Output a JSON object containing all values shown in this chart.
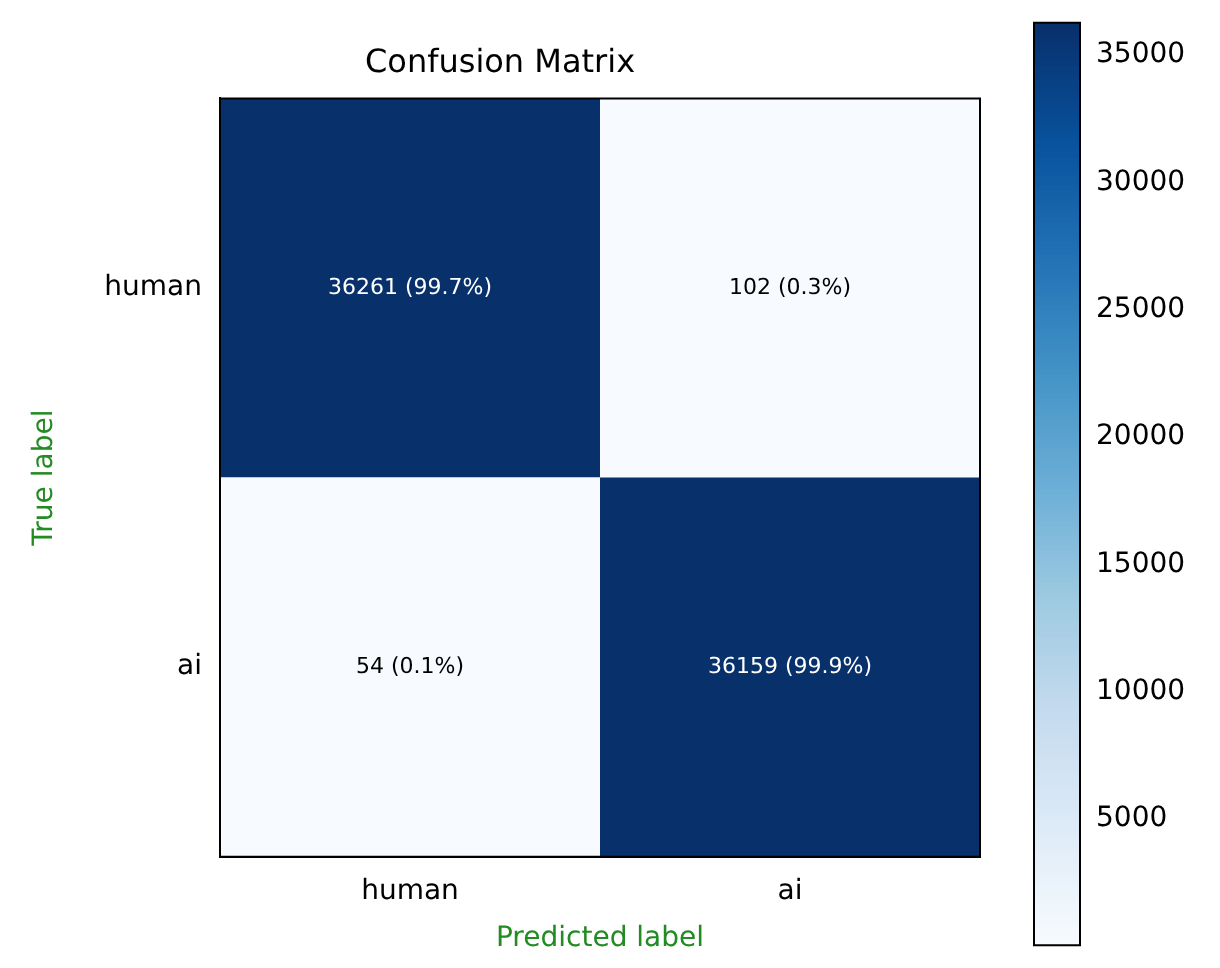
{
  "chart_data": {
    "type": "heatmap",
    "title": "Confusion Matrix",
    "xlabel": "Predicted label",
    "ylabel": "True label",
    "categories": [
      "human",
      "ai"
    ],
    "y_categories": [
      "human",
      "ai"
    ],
    "cells": [
      [
        36261,
        102
      ],
      [
        54,
        36159
      ]
    ],
    "cell_labels": [
      [
        "36261 (99.7%)",
        "102 (0.3%)"
      ],
      [
        "54 (0.1%)",
        "36159 (99.9%)"
      ]
    ],
    "clim": [
      54,
      36261
    ],
    "cticks": [
      5000,
      10000,
      15000,
      20000,
      25000,
      30000,
      35000
    ]
  }
}
